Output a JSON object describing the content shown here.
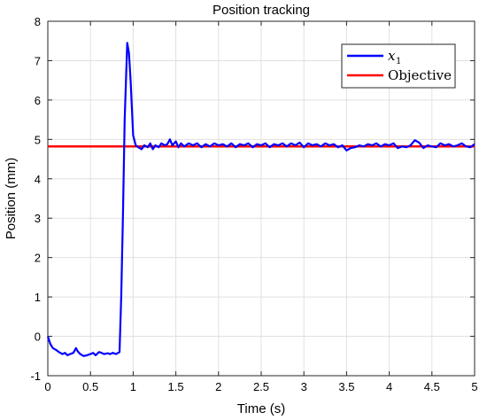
{
  "chart_data": {
    "type": "line",
    "title": "Position tracking",
    "xlabel": "Time (s)",
    "ylabel": "Position (mm)",
    "xlim": [
      0,
      5
    ],
    "ylim": [
      -1,
      8
    ],
    "xticks": [
      0,
      0.5,
      1,
      1.5,
      2,
      2.5,
      3,
      3.5,
      4,
      4.5,
      5
    ],
    "xtick_labels": [
      "0",
      "0.5",
      "1",
      "1.5",
      "2",
      "2.5",
      "3",
      "3.5",
      "4",
      "4.5",
      "5"
    ],
    "yticks": [
      -1,
      0,
      1,
      2,
      3,
      4,
      5,
      6,
      7,
      8
    ],
    "ytick_labels": [
      "-1",
      "0",
      "1",
      "2",
      "3",
      "4",
      "5",
      "6",
      "7",
      "8"
    ],
    "grid": true,
    "legend_position": "top-right",
    "series": [
      {
        "name": "x1",
        "legend_main": "x",
        "legend_sub": "1",
        "color": "#0000ff",
        "x": [
          0,
          0.03,
          0.06,
          0.1,
          0.13,
          0.17,
          0.2,
          0.23,
          0.26,
          0.3,
          0.33,
          0.35,
          0.38,
          0.42,
          0.46,
          0.5,
          0.53,
          0.56,
          0.6,
          0.63,
          0.66,
          0.7,
          0.73,
          0.76,
          0.8,
          0.84,
          0.86,
          0.88,
          0.9,
          0.93,
          0.95,
          0.97,
          1.0,
          1.03,
          1.06,
          1.1,
          1.13,
          1.17,
          1.2,
          1.23,
          1.26,
          1.3,
          1.33,
          1.37,
          1.4,
          1.43,
          1.46,
          1.5,
          1.53,
          1.56,
          1.6,
          1.65,
          1.7,
          1.75,
          1.8,
          1.85,
          1.9,
          1.95,
          2.0,
          2.05,
          2.1,
          2.15,
          2.2,
          2.25,
          2.3,
          2.35,
          2.4,
          2.45,
          2.5,
          2.55,
          2.6,
          2.65,
          2.7,
          2.75,
          2.8,
          2.85,
          2.9,
          2.95,
          3.0,
          3.05,
          3.1,
          3.15,
          3.2,
          3.25,
          3.3,
          3.35,
          3.4,
          3.45,
          3.5,
          3.55,
          3.6,
          3.65,
          3.7,
          3.75,
          3.8,
          3.85,
          3.9,
          3.95,
          4.0,
          4.05,
          4.1,
          4.15,
          4.2,
          4.25,
          4.3,
          4.35,
          4.4,
          4.45,
          4.5,
          4.55,
          4.6,
          4.65,
          4.7,
          4.75,
          4.8,
          4.85,
          4.9,
          4.95,
          5.0
        ],
        "y": [
          0,
          -0.2,
          -0.3,
          -0.35,
          -0.4,
          -0.45,
          -0.42,
          -0.48,
          -0.45,
          -0.42,
          -0.3,
          -0.38,
          -0.45,
          -0.5,
          -0.48,
          -0.45,
          -0.42,
          -0.48,
          -0.4,
          -0.42,
          -0.45,
          -0.43,
          -0.45,
          -0.42,
          -0.45,
          -0.4,
          1.0,
          3.0,
          5.5,
          7.45,
          7.2,
          6.5,
          5.1,
          4.85,
          4.8,
          4.75,
          4.85,
          4.8,
          4.9,
          4.75,
          4.85,
          4.8,
          4.9,
          4.85,
          4.88,
          5.0,
          4.85,
          4.95,
          4.8,
          4.9,
          4.82,
          4.9,
          4.85,
          4.9,
          4.8,
          4.88,
          4.82,
          4.9,
          4.85,
          4.88,
          4.82,
          4.9,
          4.8,
          4.88,
          4.85,
          4.9,
          4.8,
          4.88,
          4.85,
          4.9,
          4.8,
          4.88,
          4.85,
          4.9,
          4.82,
          4.9,
          4.85,
          4.92,
          4.8,
          4.9,
          4.85,
          4.88,
          4.82,
          4.9,
          4.85,
          4.88,
          4.8,
          4.85,
          4.72,
          4.78,
          4.8,
          4.85,
          4.82,
          4.88,
          4.85,
          4.9,
          4.82,
          4.88,
          4.85,
          4.9,
          4.78,
          4.82,
          4.8,
          4.85,
          4.98,
          4.92,
          4.78,
          4.85,
          4.82,
          4.8,
          4.9,
          4.85,
          4.88,
          4.82,
          4.85,
          4.9,
          4.82,
          4.8,
          4.88
        ]
      },
      {
        "name": "Objective",
        "color": "#ff0000",
        "x": [
          0,
          5
        ],
        "y": [
          4.82,
          4.82
        ]
      }
    ]
  }
}
